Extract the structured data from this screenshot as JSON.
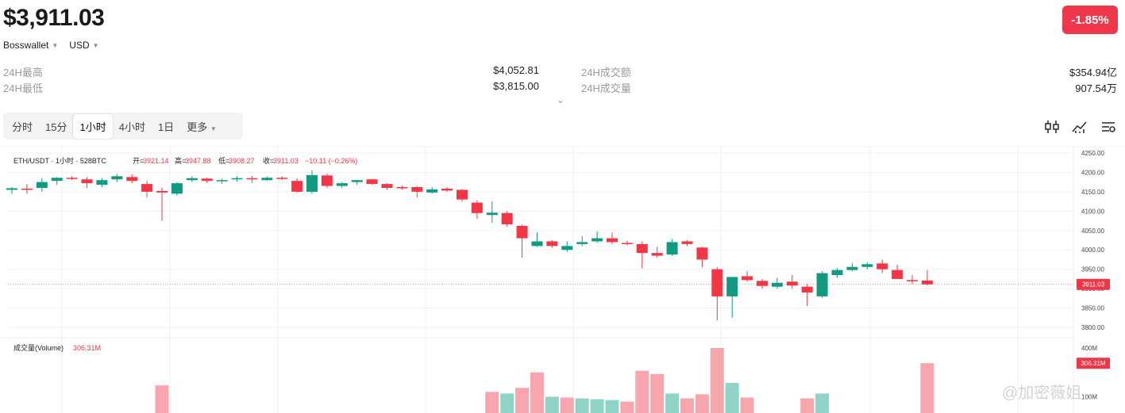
{
  "header": {
    "price": "$3,911.03",
    "wallet": "Bosswallet",
    "currency": "USD",
    "change": "-1.85%"
  },
  "stats": {
    "high_label": "24H最高",
    "high_value": "$4,052.81",
    "low_label": "24H最低",
    "low_value": "$3,815.00",
    "turnover_label": "24H成交额",
    "turnover_value": "$354.94亿",
    "volume_label": "24H成交量",
    "volume_value": "907.54万"
  },
  "timeframes": [
    "分时",
    "15分",
    "1小时",
    "4小时",
    "1日",
    "更多"
  ],
  "active_timeframe": "1小时",
  "tools": [
    "candle-settings-icon",
    "indicator-icon",
    "chart-settings-icon"
  ],
  "chart": {
    "symbol": "ETH/USDT · 1小时 · 528BTC",
    "open_label": "开=",
    "open": "3921.14",
    "high_label": "高=",
    "high": "3947.88",
    "low_label": "低=",
    "low": "3908.27",
    "close_label": "收=",
    "close": "3911.03",
    "change": "−10.11 (−0.26%)",
    "volume_label": "成交量(Volume)",
    "volume_value": "306.31M",
    "last_price_tag": "3911.03",
    "last_volume_tag": "306.31M",
    "watermark": "@加密薇姐",
    "colors": {
      "up": "#0e9b81",
      "down": "#f23645",
      "up_vol": "#8fd4c6",
      "down_vol": "#f7a6ad"
    }
  },
  "chart_data": {
    "type": "candlestick",
    "price_axis": {
      "ticks": [
        4250,
        4200,
        4150,
        4100,
        4050,
        4000,
        3950,
        3900,
        3850,
        3800
      ],
      "tick_labels": [
        "4250.00",
        "4200.00",
        "4150.00",
        "4100.00",
        "4050.00",
        "4000.00",
        "3950.00",
        "3900.00",
        "3850.00",
        "3800.00"
      ]
    },
    "volume_axis": {
      "ticks": [
        400,
        100
      ],
      "tick_labels": [
        "400M",
        "100M"
      ]
    },
    "candles": [
      {
        "o": 4155,
        "h": 4162,
        "l": 4145,
        "c": 4159
      },
      {
        "o": 4158,
        "h": 4170,
        "l": 4145,
        "c": 4155
      },
      {
        "o": 4160,
        "h": 4185,
        "l": 4150,
        "c": 4175
      },
      {
        "o": 4178,
        "h": 4188,
        "l": 4168,
        "c": 4186
      },
      {
        "o": 4186,
        "h": 4190,
        "l": 4180,
        "c": 4184
      },
      {
        "o": 4182,
        "h": 4188,
        "l": 4160,
        "c": 4172
      },
      {
        "o": 4168,
        "h": 4185,
        "l": 4162,
        "c": 4180
      },
      {
        "o": 4182,
        "h": 4196,
        "l": 4175,
        "c": 4190
      },
      {
        "o": 4188,
        "h": 4195,
        "l": 4172,
        "c": 4178
      },
      {
        "o": 4170,
        "h": 4178,
        "l": 4135,
        "c": 4150
      },
      {
        "o": 4152,
        "h": 4160,
        "l": 4075,
        "c": 4148
      },
      {
        "o": 4145,
        "h": 4175,
        "l": 4140,
        "c": 4172
      },
      {
        "o": 4180,
        "h": 4190,
        "l": 4175,
        "c": 4185
      },
      {
        "o": 4184,
        "h": 4186,
        "l": 4172,
        "c": 4178
      },
      {
        "o": 4178,
        "h": 4184,
        "l": 4170,
        "c": 4180
      },
      {
        "o": 4182,
        "h": 4190,
        "l": 4176,
        "c": 4185
      },
      {
        "o": 4185,
        "h": 4191,
        "l": 4173,
        "c": 4182
      },
      {
        "o": 4180,
        "h": 4190,
        "l": 4178,
        "c": 4186
      },
      {
        "o": 4186,
        "h": 4190,
        "l": 4180,
        "c": 4183
      },
      {
        "o": 4178,
        "h": 4185,
        "l": 4148,
        "c": 4150
      },
      {
        "o": 4150,
        "h": 4205,
        "l": 4145,
        "c": 4193
      },
      {
        "o": 4192,
        "h": 4197,
        "l": 4160,
        "c": 4165
      },
      {
        "o": 4165,
        "h": 4175,
        "l": 4160,
        "c": 4172
      },
      {
        "o": 4175,
        "h": 4181,
        "l": 4168,
        "c": 4180
      },
      {
        "o": 4182,
        "h": 4183,
        "l": 4168,
        "c": 4170
      },
      {
        "o": 4170,
        "h": 4172,
        "l": 4155,
        "c": 4160
      },
      {
        "o": 4162,
        "h": 4166,
        "l": 4155,
        "c": 4160
      },
      {
        "o": 4162,
        "h": 4165,
        "l": 4135,
        "c": 4150
      },
      {
        "o": 4148,
        "h": 4162,
        "l": 4145,
        "c": 4156
      },
      {
        "o": 4158,
        "h": 4162,
        "l": 4150,
        "c": 4153
      },
      {
        "o": 4155,
        "h": 4157,
        "l": 4125,
        "c": 4130
      },
      {
        "o": 4122,
        "h": 4128,
        "l": 4080,
        "c": 4095
      },
      {
        "o": 4090,
        "h": 4125,
        "l": 4070,
        "c": 4096
      },
      {
        "o": 4095,
        "h": 4100,
        "l": 4060,
        "c": 4066
      },
      {
        "o": 4062,
        "h": 4065,
        "l": 3980,
        "c": 4030
      },
      {
        "o": 4010,
        "h": 4045,
        "l": 4008,
        "c": 4022
      },
      {
        "o": 4022,
        "h": 4025,
        "l": 4005,
        "c": 4010
      },
      {
        "o": 4000,
        "h": 4022,
        "l": 3995,
        "c": 4010
      },
      {
        "o": 4015,
        "h": 4035,
        "l": 4010,
        "c": 4020
      },
      {
        "o": 4022,
        "h": 4048,
        "l": 4018,
        "c": 4030
      },
      {
        "o": 4030,
        "h": 4045,
        "l": 4015,
        "c": 4020
      },
      {
        "o": 4018,
        "h": 4024,
        "l": 4012,
        "c": 4016
      },
      {
        "o": 4015,
        "h": 4022,
        "l": 3952,
        "c": 3992
      },
      {
        "o": 3992,
        "h": 4008,
        "l": 3980,
        "c": 3985
      },
      {
        "o": 3988,
        "h": 4028,
        "l": 3984,
        "c": 4020
      },
      {
        "o": 4022,
        "h": 4025,
        "l": 4010,
        "c": 4015
      },
      {
        "o": 4006,
        "h": 4008,
        "l": 3955,
        "c": 3975
      },
      {
        "o": 3950,
        "h": 3955,
        "l": 3818,
        "c": 3880
      },
      {
        "o": 3880,
        "h": 3928,
        "l": 3825,
        "c": 3930
      },
      {
        "o": 3932,
        "h": 3945,
        "l": 3918,
        "c": 3922
      },
      {
        "o": 3920,
        "h": 3925,
        "l": 3900,
        "c": 3907
      },
      {
        "o": 3905,
        "h": 3928,
        "l": 3900,
        "c": 3915
      },
      {
        "o": 3918,
        "h": 3935,
        "l": 3900,
        "c": 3908
      },
      {
        "o": 3905,
        "h": 3912,
        "l": 3855,
        "c": 3890
      },
      {
        "o": 3880,
        "h": 3945,
        "l": 3876,
        "c": 3940
      },
      {
        "o": 3935,
        "h": 3953,
        "l": 3928,
        "c": 3948
      },
      {
        "o": 3948,
        "h": 3966,
        "l": 3945,
        "c": 3956
      },
      {
        "o": 3956,
        "h": 3968,
        "l": 3950,
        "c": 3963
      },
      {
        "o": 3965,
        "h": 3975,
        "l": 3940,
        "c": 3950
      },
      {
        "o": 3948,
        "h": 3962,
        "l": 3925,
        "c": 3925
      },
      {
        "o": 3922,
        "h": 3935,
        "l": 3912,
        "c": 3921
      },
      {
        "o": 3921,
        "h": 3948,
        "l": 3908,
        "c": 3911
      }
    ],
    "volume_bars": [
      {
        "i": 8,
        "v": 0,
        "up": true
      },
      {
        "i": 9,
        "v": 0,
        "up": false
      },
      {
        "i": 10,
        "v": 170,
        "up": false
      },
      {
        "i": 19,
        "v": 0,
        "up": false
      },
      {
        "i": 31,
        "v": 0,
        "up": false
      },
      {
        "i": 32,
        "v": 130,
        "up": false
      },
      {
        "i": 33,
        "v": 120,
        "up": true
      },
      {
        "i": 34,
        "v": 155,
        "up": false
      },
      {
        "i": 35,
        "v": 250,
        "up": false
      },
      {
        "i": 36,
        "v": 100,
        "up": true
      },
      {
        "i": 37,
        "v": 95,
        "up": false
      },
      {
        "i": 38,
        "v": 90,
        "up": true
      },
      {
        "i": 39,
        "v": 85,
        "up": true
      },
      {
        "i": 40,
        "v": 80,
        "up": true
      },
      {
        "i": 41,
        "v": 70,
        "up": false
      },
      {
        "i": 42,
        "v": 260,
        "up": false
      },
      {
        "i": 43,
        "v": 240,
        "up": false
      },
      {
        "i": 44,
        "v": 120,
        "up": true
      },
      {
        "i": 45,
        "v": 90,
        "up": false
      },
      {
        "i": 46,
        "v": 115,
        "up": false
      },
      {
        "i": 47,
        "v": 400,
        "up": false
      },
      {
        "i": 48,
        "v": 185,
        "up": true
      },
      {
        "i": 49,
        "v": 95,
        "up": false
      },
      {
        "i": 50,
        "v": 0,
        "up": false
      },
      {
        "i": 53,
        "v": 90,
        "up": false
      },
      {
        "i": 54,
        "v": 120,
        "up": true
      },
      {
        "i": 61,
        "v": 306.31,
        "up": false
      }
    ]
  }
}
